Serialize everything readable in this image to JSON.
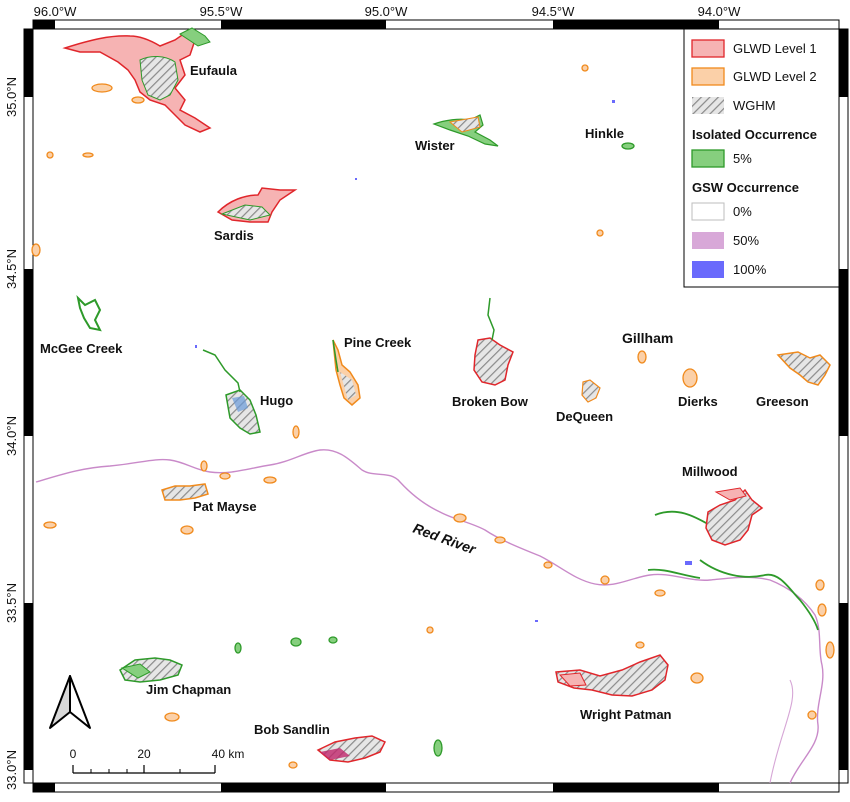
{
  "colors": {
    "glwd1_fill": "#f6b3b3",
    "glwd1_stroke": "#e0262b",
    "glwd2_fill": "#fbd0a8",
    "glwd2_stroke": "#f08a1c",
    "wghm": "#a8a8a8",
    "iso_fill": "#86cf7e",
    "iso_stroke": "#2e9a2a",
    "gsw0": "#ffffff",
    "gsw50": "#d8a8d8",
    "gsw100": "#6a6afc"
  },
  "top_ticks": [
    "96.0°W",
    "95.5°W",
    "95.0°W",
    "94.5°W",
    "94.0°W"
  ],
  "left_ticks": [
    "35.0°N",
    "34.5°N",
    "34.0°N",
    "33.5°N",
    "33.0°N"
  ],
  "lakes": [
    {
      "name": "Eufaula"
    },
    {
      "name": "Wister"
    },
    {
      "name": "Hinkle"
    },
    {
      "name": "Sardis"
    },
    {
      "name": "McGee Creek"
    },
    {
      "name": "Pine Creek"
    },
    {
      "name": "Gillham"
    },
    {
      "name": "Hugo"
    },
    {
      "name": "Broken Bow"
    },
    {
      "name": "DeQueen"
    },
    {
      "name": "Dierks"
    },
    {
      "name": "Greeson"
    },
    {
      "name": "Millwood"
    },
    {
      "name": "Pat Mayse"
    },
    {
      "name": "Jim Chapman"
    },
    {
      "name": "Bob Sandlin"
    },
    {
      "name": "Wright Patman"
    }
  ],
  "river_label": "Red River",
  "legend": {
    "items": [
      {
        "label": "GLWD Level 1"
      },
      {
        "label": "GLWD Level 2"
      },
      {
        "label": "WGHM"
      }
    ],
    "isolated_heading": "Isolated Occurrence",
    "isolated_item": "5%",
    "gsw_heading": "GSW Occurrence",
    "gsw_items": [
      {
        "label": "0%"
      },
      {
        "label": "50%"
      },
      {
        "label": "100%"
      }
    ]
  },
  "scale_bar": {
    "labels": [
      "0",
      "20",
      "40 km"
    ]
  }
}
